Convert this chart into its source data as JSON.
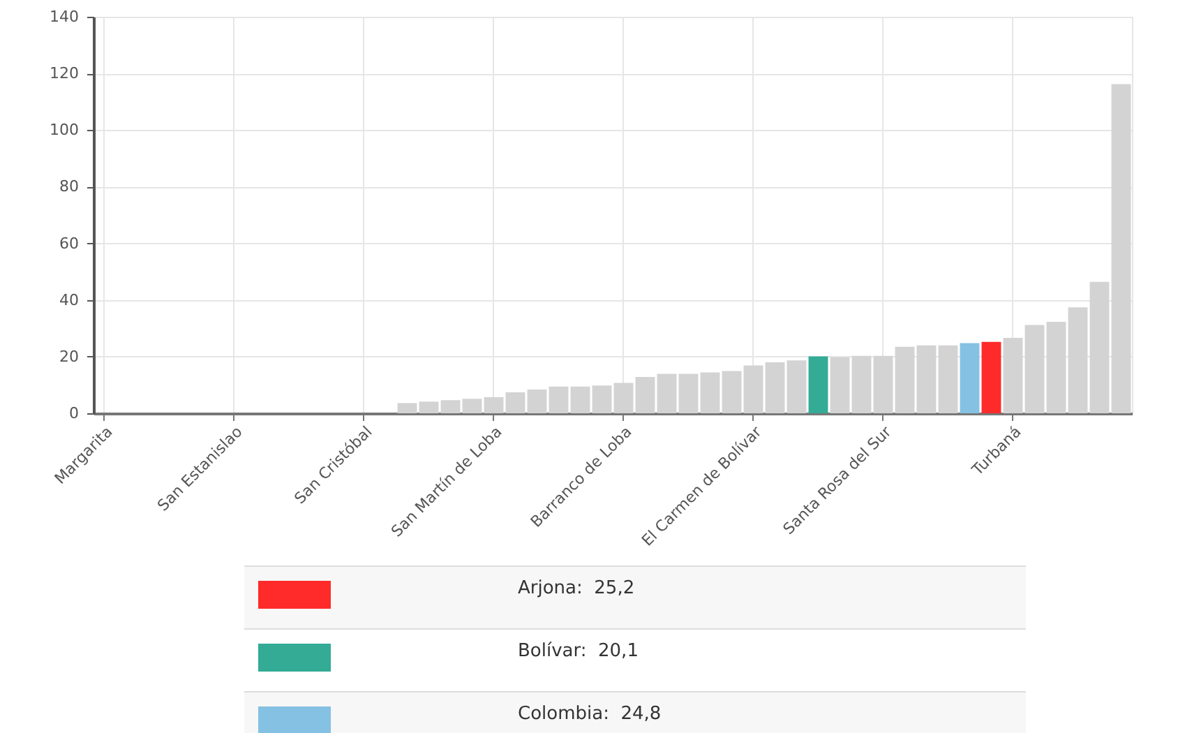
{
  "chart_data": {
    "type": "bar",
    "grid": true,
    "categories": [
      "Margarita",
      null,
      null,
      null,
      null,
      null,
      "San Estanislao",
      null,
      null,
      null,
      null,
      null,
      "San Cristóbal",
      null,
      null,
      null,
      null,
      null,
      "San Martín de Loba",
      null,
      null,
      null,
      null,
      null,
      "Barranco de Loba",
      null,
      null,
      null,
      null,
      null,
      "El Carmen de Bolívar",
      null,
      null,
      null,
      null,
      null,
      "Santa Rosa del Sur",
      null,
      null,
      null,
      null,
      null,
      "Turbaná",
      null,
      null,
      null,
      null,
      null
    ],
    "ylim": [
      0,
      140
    ],
    "yticks": [
      0,
      20,
      40,
      60,
      80,
      100,
      120,
      140
    ],
    "series": [
      {
        "color": "#d3d3d3",
        "values": [
          0,
          0,
          0,
          0,
          0,
          0,
          0,
          0,
          0,
          0,
          0,
          0,
          0,
          0,
          3.6,
          4.1,
          4.6,
          5.1,
          5.7,
          7.4,
          8.4,
          9.4,
          9.4,
          9.8,
          10.7,
          12.8,
          13.9,
          13.9,
          14.4,
          14.9,
          16.9,
          18.0,
          18.7,
          null,
          19.8,
          20.3,
          20.3,
          23.5,
          24.0,
          24.0,
          null,
          null,
          26.6,
          31.2,
          32.3,
          37.4,
          46.4,
          116.2
        ]
      },
      {
        "name": "Arjona:",
        "color": "#ff2a2a",
        "values": [
          null,
          null,
          null,
          null,
          null,
          null,
          null,
          null,
          null,
          null,
          null,
          null,
          null,
          null,
          null,
          null,
          null,
          null,
          null,
          null,
          null,
          null,
          null,
          null,
          null,
          null,
          null,
          null,
          null,
          null,
          null,
          null,
          null,
          null,
          null,
          null,
          null,
          null,
          null,
          null,
          null,
          25.2,
          null,
          null,
          null,
          null,
          null,
          null
        ],
        "value_labels": [
          null,
          null,
          null,
          null,
          null,
          null,
          null,
          null,
          null,
          null,
          null,
          null,
          null,
          null,
          null,
          null,
          null,
          null,
          null,
          null,
          null,
          null,
          null,
          null,
          null,
          null,
          null,
          null,
          null,
          null,
          null,
          null,
          null,
          null,
          null,
          null,
          null,
          null,
          null,
          null,
          null,
          "25,2",
          null,
          null,
          null,
          null,
          null,
          null
        ]
      },
      {
        "name": "Bolívar:",
        "color": "#33ab95",
        "values": [
          null,
          null,
          null,
          null,
          null,
          null,
          null,
          null,
          null,
          null,
          null,
          null,
          null,
          null,
          null,
          null,
          null,
          null,
          null,
          null,
          null,
          null,
          null,
          null,
          null,
          null,
          null,
          null,
          null,
          null,
          null,
          null,
          null,
          20.1,
          null,
          null,
          null,
          null,
          null,
          null,
          null,
          null,
          null,
          null,
          null,
          null,
          null,
          null
        ],
        "value_labels": [
          null,
          null,
          null,
          null,
          null,
          null,
          null,
          null,
          null,
          null,
          null,
          null,
          null,
          null,
          null,
          null,
          null,
          null,
          null,
          null,
          null,
          null,
          null,
          null,
          null,
          null,
          null,
          null,
          null,
          null,
          null,
          null,
          null,
          "20,1",
          null,
          null,
          null,
          null,
          null,
          null,
          null,
          null,
          null,
          null,
          null,
          null,
          null,
          null
        ]
      },
      {
        "name": "Colombia:",
        "color": "#85c1e3",
        "values": [
          null,
          null,
          null,
          null,
          null,
          null,
          null,
          null,
          null,
          null,
          null,
          null,
          null,
          null,
          null,
          null,
          null,
          null,
          null,
          null,
          null,
          null,
          null,
          null,
          null,
          null,
          null,
          null,
          null,
          null,
          null,
          null,
          null,
          null,
          null,
          null,
          null,
          null,
          null,
          null,
          24.8,
          null,
          null,
          null,
          null,
          null,
          null,
          null
        ],
        "value_labels": [
          null,
          null,
          null,
          null,
          null,
          null,
          null,
          null,
          null,
          null,
          null,
          null,
          null,
          null,
          null,
          null,
          null,
          null,
          null,
          null,
          null,
          null,
          null,
          null,
          null,
          null,
          null,
          null,
          null,
          null,
          null,
          null,
          null,
          null,
          null,
          null,
          null,
          null,
          null,
          null,
          "24,8",
          null,
          null,
          null,
          null,
          null,
          null,
          null
        ]
      }
    ]
  }
}
